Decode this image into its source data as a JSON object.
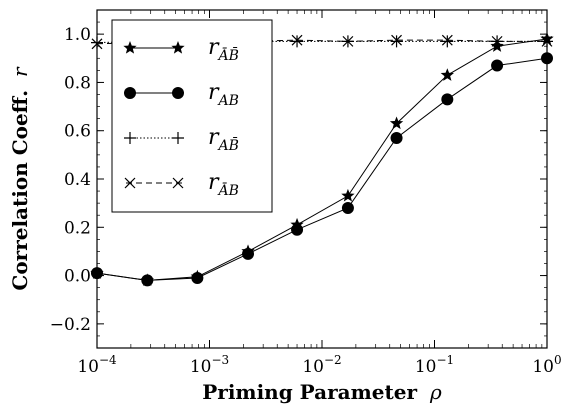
{
  "chart_data": {
    "type": "line",
    "xscale": "log",
    "xlim": [
      0.0001,
      1
    ],
    "ylim": [
      -0.3,
      1.1
    ],
    "xlabel_text": "Priming Parameter",
    "xlabel_symbol": "ρ",
    "ylabel_text": "Correlation Coeff.",
    "ylabel_symbol": "r",
    "grid": false,
    "legend_position": "upper-left",
    "x_ticks": [
      {
        "value": 0.0001,
        "base": "10",
        "exp": "−4"
      },
      {
        "value": 0.001,
        "base": "10",
        "exp": "−3"
      },
      {
        "value": 0.01,
        "base": "10",
        "exp": "−2"
      },
      {
        "value": 0.1,
        "base": "10",
        "exp": "−1"
      },
      {
        "value": 1,
        "base": "10",
        "exp": "0"
      }
    ],
    "y_ticks": [
      {
        "value": -0.2,
        "label": "−0.2"
      },
      {
        "value": 0.0,
        "label": "0.0"
      },
      {
        "value": 0.2,
        "label": "0.2"
      },
      {
        "value": 0.4,
        "label": "0.4"
      },
      {
        "value": 0.6,
        "label": "0.6"
      },
      {
        "value": 0.8,
        "label": "0.8"
      },
      {
        "value": 1.0,
        "label": "1.0"
      }
    ],
    "x": [
      0.0001,
      0.00028,
      0.00078,
      0.0022,
      0.006,
      0.017,
      0.046,
      0.13,
      0.36,
      1.0
    ],
    "series": [
      {
        "name_main": "r",
        "name_sub": "ĀB̄",
        "marker": "star",
        "dash": "solid",
        "values": [
          0.01,
          -0.02,
          -0.005,
          0.1,
          0.21,
          0.33,
          0.63,
          0.83,
          0.95,
          0.98
        ]
      },
      {
        "name_main": "r",
        "name_sub": "AB",
        "marker": "circle",
        "dash": "solid",
        "values": [
          0.01,
          -0.02,
          -0.01,
          0.09,
          0.19,
          0.28,
          0.57,
          0.73,
          0.87,
          0.9
        ]
      },
      {
        "name_main": "r",
        "name_sub": "AB̄",
        "marker": "plus",
        "dash": "dotted",
        "values": [
          0.965,
          0.97,
          0.97,
          0.97,
          0.97,
          0.97,
          0.97,
          0.97,
          0.97,
          0.97
        ]
      },
      {
        "name_main": "r",
        "name_sub": "ĀB",
        "marker": "x",
        "dash": "dashed",
        "values": [
          0.96,
          0.965,
          0.97,
          0.97,
          0.975,
          0.97,
          0.975,
          0.975,
          0.97,
          0.97
        ]
      }
    ]
  }
}
